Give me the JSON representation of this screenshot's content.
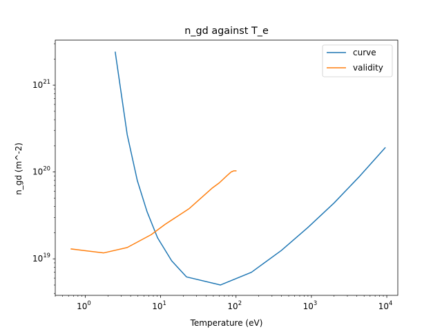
{
  "chart_data": {
    "type": "line",
    "title": "n_gd against T_e",
    "xlabel": "Temperature (eV)",
    "ylabel": "n_gd (m^-2)",
    "xscale": "log",
    "yscale": "log",
    "xlim": [
      0.4,
      14000
    ],
    "ylim": [
      3.8e+18,
      3.3e+21
    ],
    "grid": false,
    "legend_position": "top-right",
    "x_ticks": [
      {
        "base": "10",
        "exp": "0",
        "value": 1
      },
      {
        "base": "10",
        "exp": "1",
        "value": 10
      },
      {
        "base": "10",
        "exp": "2",
        "value": 100
      },
      {
        "base": "10",
        "exp": "3",
        "value": 1000
      },
      {
        "base": "10",
        "exp": "4",
        "value": 10000
      }
    ],
    "y_ticks": [
      {
        "base": "10",
        "exp": "19",
        "value": 1e+19
      },
      {
        "base": "10",
        "exp": "20",
        "value": 1e+20
      },
      {
        "base": "10",
        "exp": "21",
        "value": 1e+21
      }
    ],
    "series": [
      {
        "name": "curve",
        "color": "#1f77b4",
        "points": [
          [
            2.5,
            2.4e+21
          ],
          [
            3.6,
            2.7e+20
          ],
          [
            4.9,
            8e+19
          ],
          [
            6.6,
            3.5e+19
          ],
          [
            9.1,
            1.75e+19
          ],
          [
            14,
            9.5e+18
          ],
          [
            22,
            6.2e+18
          ],
          [
            62,
            5e+18
          ],
          [
            160,
            7e+18
          ],
          [
            400,
            1.25e+19
          ],
          [
            900,
            2.3e+19
          ],
          [
            2000,
            4.4e+19
          ],
          [
            4400,
            9e+19
          ],
          [
            9500,
            1.9e+20
          ]
        ]
      },
      {
        "name": "validity",
        "color": "#ff7f0e",
        "points": [
          [
            0.65,
            1.3e+19
          ],
          [
            1.75,
            1.17e+19
          ],
          [
            3.6,
            1.35e+19
          ],
          [
            7.5,
            1.9e+19
          ],
          [
            11.5,
            2.5e+19
          ],
          [
            24,
            3.8e+19
          ],
          [
            48,
            6.5e+19
          ],
          [
            60,
            7.5e+19
          ],
          [
            75,
            9e+19
          ],
          [
            86,
            1e+20
          ],
          [
            93,
            1.03e+20
          ],
          [
            100,
            1.03e+20
          ]
        ]
      }
    ]
  }
}
